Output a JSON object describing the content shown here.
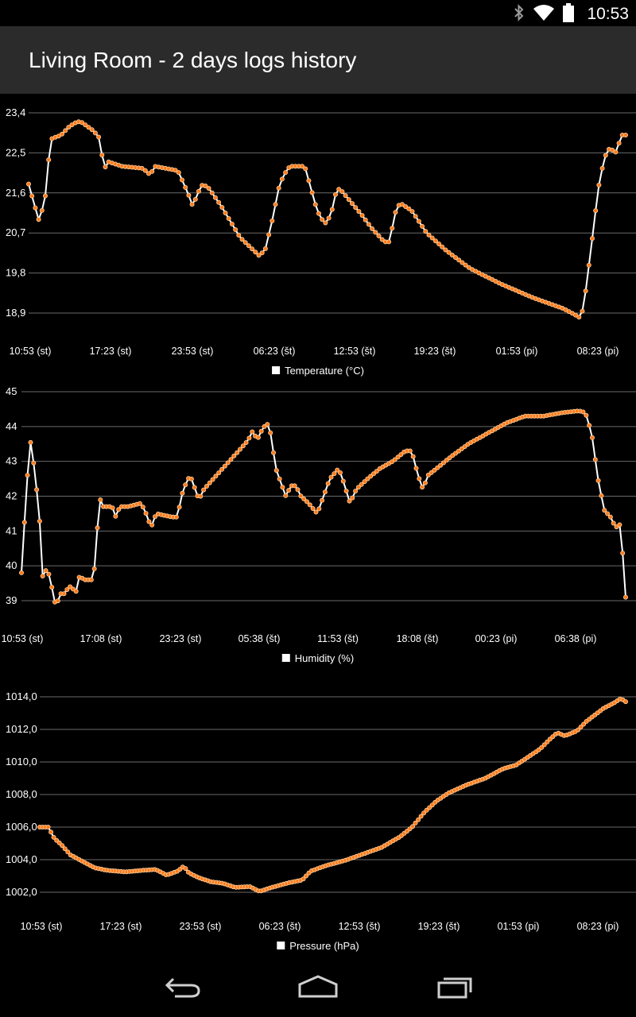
{
  "status_bar": {
    "time": "10:53",
    "icons": [
      "bluetooth-icon",
      "wifi-icon",
      "battery-icon"
    ]
  },
  "app_bar": {
    "title": "Living Room - 2 days logs history"
  },
  "colors": {
    "line": "#ffffff",
    "marker_fill": "#ff7a1a",
    "marker_stroke": "#ffd0a0",
    "grid": "#6a6a6a",
    "appbar_bg": "#2b2b2b"
  },
  "chart_data": [
    {
      "type": "line",
      "legend": "Temperature (°C)",
      "y_ticks": [
        "23,4",
        "22,5",
        "21,6",
        "20,7",
        "19,8",
        "18,9"
      ],
      "y_tick_values": [
        23.4,
        22.5,
        21.6,
        20.7,
        19.8,
        18.9
      ],
      "x_ticks": [
        "10:53 (st)",
        "17:23 (st)",
        "23:53 (st)",
        "06:23 (št)",
        "12:53 (št)",
        "19:23 (št)",
        "01:53 (pi)",
        "08:23 (pi)"
      ],
      "x_tick_hours": [
        0,
        6.5,
        13,
        19.5,
        26,
        32.5,
        39,
        45.5
      ],
      "x_range_hours": [
        0,
        48
      ],
      "grid": true,
      "legend_position": "bottom-center",
      "anchors": [
        [
          0,
          21.8
        ],
        [
          0.5,
          21.3
        ],
        [
          0.8,
          21.0
        ],
        [
          1.2,
          21.3
        ],
        [
          1.5,
          21.8
        ],
        [
          1.7,
          22.8
        ],
        [
          2.6,
          22.9
        ],
        [
          3.3,
          23.1
        ],
        [
          3.9,
          23.2
        ],
        [
          4.2,
          23.2
        ],
        [
          5.2,
          23.0
        ],
        [
          5.8,
          22.8
        ],
        [
          6.0,
          22.1
        ],
        [
          6.4,
          22.3
        ],
        [
          7.5,
          22.2
        ],
        [
          9.2,
          22.15
        ],
        [
          9.8,
          22.0
        ],
        [
          10.1,
          22.2
        ],
        [
          12.0,
          22.1
        ],
        [
          12.8,
          21.6
        ],
        [
          13.2,
          21.3
        ],
        [
          13.6,
          21.6
        ],
        [
          14.0,
          21.8
        ],
        [
          14.5,
          21.7
        ],
        [
          15.5,
          21.3
        ],
        [
          17.0,
          20.6
        ],
        [
          18.5,
          20.2
        ],
        [
          19.0,
          20.3
        ],
        [
          19.6,
          21.0
        ],
        [
          20.1,
          21.7
        ],
        [
          20.5,
          22.0
        ],
        [
          21.0,
          22.2
        ],
        [
          22.2,
          22.2
        ],
        [
          22.6,
          21.8
        ],
        [
          23.2,
          21.2
        ],
        [
          23.8,
          20.9
        ],
        [
          24.3,
          21.1
        ],
        [
          24.7,
          21.6
        ],
        [
          25.0,
          21.7
        ],
        [
          25.6,
          21.5
        ],
        [
          26.8,
          21.1
        ],
        [
          27.6,
          20.8
        ],
        [
          28.6,
          20.5
        ],
        [
          29.0,
          20.5
        ],
        [
          29.6,
          21.3
        ],
        [
          30.0,
          21.35
        ],
        [
          30.8,
          21.2
        ],
        [
          32.0,
          20.7
        ],
        [
          33.6,
          20.3
        ],
        [
          35.5,
          19.9
        ],
        [
          38.0,
          19.55
        ],
        [
          40.5,
          19.25
        ],
        [
          43.0,
          19.0
        ],
        [
          44.0,
          18.85
        ],
        [
          44.3,
          18.8
        ],
        [
          44.6,
          19.0
        ],
        [
          45.2,
          20.3
        ],
        [
          45.8,
          21.7
        ],
        [
          46.3,
          22.4
        ],
        [
          46.7,
          22.6
        ],
        [
          47.3,
          22.5
        ],
        [
          47.6,
          22.9
        ]
      ],
      "n_points": 180
    },
    {
      "type": "line",
      "legend": "Humidity (%)",
      "y_ticks": [
        "45",
        "44",
        "43",
        "42",
        "41",
        "40",
        "39"
      ],
      "y_tick_values": [
        45,
        44,
        43,
        42,
        41,
        40,
        39
      ],
      "x_ticks": [
        "10:53 (st)",
        "17:08 (st)",
        "23:23 (st)",
        "05:38 (št)",
        "11:53 (št)",
        "18:08 (št)",
        "00:23 (pi)",
        "06:38 (pi)"
      ],
      "x_tick_hours": [
        0,
        6.25,
        12.5,
        18.75,
        25,
        31.25,
        37.5,
        43.75
      ],
      "x_range_hours": [
        0,
        48
      ],
      "grid": true,
      "legend_position": "bottom-center",
      "anchors": [
        [
          0,
          39.8
        ],
        [
          0.25,
          41.3
        ],
        [
          0.5,
          42.7
        ],
        [
          0.7,
          43.6
        ],
        [
          0.95,
          43.0
        ],
        [
          1.2,
          42.2
        ],
        [
          1.4,
          41.8
        ],
        [
          1.6,
          39.6
        ],
        [
          1.85,
          39.9
        ],
        [
          2.3,
          39.7
        ],
        [
          2.55,
          39.0
        ],
        [
          2.8,
          38.9
        ],
        [
          3.1,
          39.2
        ],
        [
          3.5,
          39.2
        ],
        [
          3.7,
          39.4
        ],
        [
          4.0,
          39.4
        ],
        [
          4.3,
          39.2
        ],
        [
          4.6,
          39.7
        ],
        [
          5.0,
          39.6
        ],
        [
          5.6,
          39.6
        ],
        [
          5.9,
          40.1
        ],
        [
          6.15,
          42.0
        ],
        [
          6.5,
          41.7
        ],
        [
          7.2,
          41.7
        ],
        [
          7.5,
          41.4
        ],
        [
          7.8,
          41.7
        ],
        [
          8.5,
          41.7
        ],
        [
          9.5,
          41.8
        ],
        [
          9.9,
          41.5
        ],
        [
          10.3,
          41.1
        ],
        [
          10.7,
          41.5
        ],
        [
          12.0,
          41.4
        ],
        [
          12.4,
          41.4
        ],
        [
          12.7,
          42.0
        ],
        [
          13.1,
          42.4
        ],
        [
          13.4,
          42.6
        ],
        [
          13.8,
          42.2
        ],
        [
          14.1,
          41.9
        ],
        [
          14.5,
          42.2
        ],
        [
          15.5,
          42.6
        ],
        [
          16.5,
          43.0
        ],
        [
          17.5,
          43.4
        ],
        [
          18.0,
          43.6
        ],
        [
          18.4,
          43.9
        ],
        [
          18.7,
          43.6
        ],
        [
          19.1,
          43.9
        ],
        [
          19.5,
          44.1
        ],
        [
          19.8,
          43.8
        ],
        [
          20.2,
          42.8
        ],
        [
          20.6,
          42.4
        ],
        [
          21.0,
          42.0
        ],
        [
          21.4,
          42.3
        ],
        [
          21.8,
          42.3
        ],
        [
          22.2,
          42.0
        ],
        [
          22.8,
          41.8
        ],
        [
          23.5,
          41.5
        ],
        [
          24.0,
          42.0
        ],
        [
          24.5,
          42.5
        ],
        [
          25.2,
          42.8
        ],
        [
          25.6,
          42.4
        ],
        [
          26.1,
          41.8
        ],
        [
          26.6,
          42.2
        ],
        [
          27.5,
          42.5
        ],
        [
          28.5,
          42.8
        ],
        [
          29.5,
          43.0
        ],
        [
          30.5,
          43.3
        ],
        [
          31.0,
          43.3
        ],
        [
          31.5,
          42.6
        ],
        [
          31.9,
          42.2
        ],
        [
          32.3,
          42.6
        ],
        [
          33.0,
          42.8
        ],
        [
          34.0,
          43.1
        ],
        [
          35.5,
          43.5
        ],
        [
          37.0,
          43.8
        ],
        [
          38.5,
          44.1
        ],
        [
          40.0,
          44.3
        ],
        [
          41.5,
          44.3
        ],
        [
          43.0,
          44.4
        ],
        [
          44.3,
          44.45
        ],
        [
          44.8,
          44.4
        ],
        [
          45.3,
          43.8
        ],
        [
          45.8,
          42.5
        ],
        [
          46.3,
          41.6
        ],
        [
          46.8,
          41.4
        ],
        [
          47.2,
          41.1
        ],
        [
          47.6,
          41.2
        ],
        [
          48.0,
          39.1
        ]
      ],
      "n_points": 200
    },
    {
      "type": "line",
      "legend": "Pressure (hPa)",
      "y_ticks": [
        "1014,0",
        "1012,0",
        "1010,0",
        "1008,0",
        "1006,0",
        "1004,0",
        "1002,0"
      ],
      "y_tick_values": [
        1014,
        1012,
        1010,
        1008,
        1006,
        1004,
        1002
      ],
      "x_ticks": [
        "10:53 (st)",
        "17:23 (st)",
        "23:53 (st)",
        "06:23 (št)",
        "12:53 (št)",
        "19:23 (št)",
        "01:53 (pi)",
        "08:23 (pi)"
      ],
      "x_tick_hours": [
        0,
        6.5,
        13,
        19.5,
        26,
        32.5,
        39,
        45.5
      ],
      "x_range_hours": [
        0,
        48
      ],
      "grid": true,
      "legend_position": "bottom-center",
      "anchors": [
        [
          0,
          1006.0
        ],
        [
          0.7,
          1006.0
        ],
        [
          1.2,
          1005.3
        ],
        [
          1.8,
          1004.9
        ],
        [
          2.5,
          1004.3
        ],
        [
          3.5,
          1003.9
        ],
        [
          4.5,
          1003.5
        ],
        [
          5.5,
          1003.35
        ],
        [
          7.0,
          1003.25
        ],
        [
          8.5,
          1003.35
        ],
        [
          9.5,
          1003.4
        ],
        [
          10.4,
          1003.05
        ],
        [
          11.3,
          1003.3
        ],
        [
          11.8,
          1003.6
        ],
        [
          12.2,
          1003.2
        ],
        [
          13.0,
          1002.9
        ],
        [
          14.0,
          1002.65
        ],
        [
          15.0,
          1002.55
        ],
        [
          16.0,
          1002.3
        ],
        [
          17.2,
          1002.35
        ],
        [
          18.0,
          1002.05
        ],
        [
          19.0,
          1002.3
        ],
        [
          20.5,
          1002.6
        ],
        [
          21.5,
          1002.75
        ],
        [
          22.2,
          1003.3
        ],
        [
          23.5,
          1003.65
        ],
        [
          25.0,
          1003.95
        ],
        [
          26.5,
          1004.35
        ],
        [
          28.0,
          1004.75
        ],
        [
          29.5,
          1005.4
        ],
        [
          30.5,
          1006.0
        ],
        [
          31.5,
          1006.9
        ],
        [
          32.5,
          1007.6
        ],
        [
          33.5,
          1008.1
        ],
        [
          35.0,
          1008.6
        ],
        [
          36.5,
          1009.0
        ],
        [
          38.0,
          1009.6
        ],
        [
          39.0,
          1009.8
        ],
        [
          40.0,
          1010.3
        ],
        [
          41.0,
          1010.8
        ],
        [
          41.8,
          1011.4
        ],
        [
          42.4,
          1011.8
        ],
        [
          43.0,
          1011.6
        ],
        [
          44.0,
          1011.9
        ],
        [
          44.8,
          1012.5
        ],
        [
          45.5,
          1012.9
        ],
        [
          46.2,
          1013.3
        ],
        [
          47.0,
          1013.6
        ],
        [
          47.6,
          1013.9
        ],
        [
          48.0,
          1013.7
        ]
      ],
      "n_points": 210
    }
  ]
}
